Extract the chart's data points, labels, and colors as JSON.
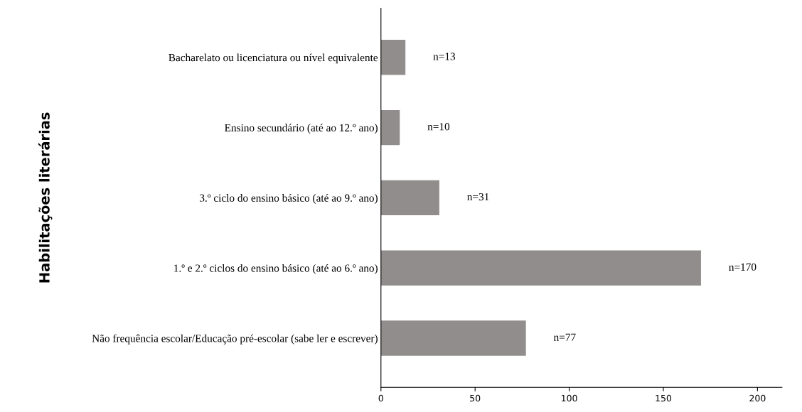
{
  "chart_data": {
    "type": "bar",
    "orientation": "horizontal",
    "ylabel": "Habilitações literárias",
    "categories": [
      "Bacharelato ou licenciatura ou nível equivalente",
      "Ensino secundário (até ao 12.º ano)",
      "3.º ciclo do ensino básico (até ao 9.º ano)",
      "1.º e 2.º ciclos do ensino básico (até ao 6.º ano)",
      "Não frequência escolar/Educação pré-escolar (sabe ler e escrever)"
    ],
    "values": [
      13,
      10,
      31,
      170,
      77
    ],
    "value_labels": [
      "n=13",
      "n=10",
      "n=31",
      "n=170",
      "n=77"
    ],
    "color": "#918d8c",
    "xlim": [
      0,
      213
    ],
    "xticks": [
      0,
      50,
      100,
      150,
      200
    ],
    "grid": false
  }
}
